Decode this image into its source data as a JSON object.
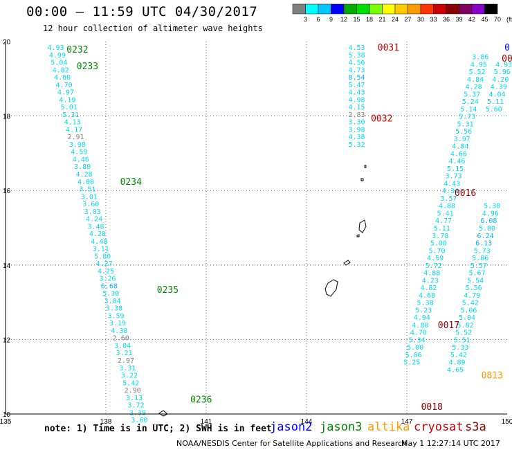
{
  "title": "00:00 – 11:59 UTC 04/30/2017",
  "subtitle": "12 hour collection of altimeter wave heights",
  "colorbar": {
    "ticks": [
      "3",
      "6",
      "9",
      "12",
      "15",
      "18",
      "21",
      "24",
      "27",
      "30",
      "33",
      "36",
      "39",
      "42",
      "45",
      "70",
      "(ft)"
    ],
    "colors": [
      "#7f7f7f",
      "#00ffff",
      "#00c8ff",
      "#0000ff",
      "#00aa00",
      "#00dd00",
      "#7cff00",
      "#ffff00",
      "#ffcc00",
      "#ff9900",
      "#ff3300",
      "#cc0000",
      "#8b0000",
      "#800060",
      "#8800cc",
      "#000000"
    ]
  },
  "note": "note: 1) Time is in UTC; 2) SWH is in feet",
  "missions": [
    {
      "name": "jason2",
      "color": "#0000ff"
    },
    {
      "name": "jason3",
      "color": "#008800"
    },
    {
      "name": "altika",
      "color": "#ff9900"
    },
    {
      "name": "cryosat",
      "color": "#cc0000"
    },
    {
      "name": "s3a",
      "color": "#8b0000"
    }
  ],
  "footer": "NOAA/NESDIS Center for Satellite Applications and Research",
  "footer_time": "May  1 12:27:14 UTC 2017",
  "chart_data": {
    "type": "scatter",
    "xlim": [
      135,
      150
    ],
    "ylim": [
      10,
      20
    ],
    "xticks": [
      "135",
      "138",
      "141",
      "144",
      "147",
      "150"
    ],
    "yticks": [
      "10",
      "12",
      "14",
      "16",
      "18",
      "20"
    ],
    "grid": true,
    "tracks": [
      {
        "mission": "jason3",
        "color": "#008800",
        "labels": [
          {
            "text": "0232",
            "lon": 137.15,
            "lat": 19.8
          },
          {
            "text": "0233",
            "lon": 137.45,
            "lat": 19.35
          },
          {
            "text": "0234",
            "lon": 138.75,
            "lat": 16.25
          },
          {
            "text": "0235",
            "lon": 139.85,
            "lat": 13.35
          },
          {
            "text": "0236",
            "lon": 140.85,
            "lat": 10.4
          }
        ]
      },
      {
        "mission": "cryosat",
        "color": "#cc0000",
        "labels": [
          {
            "text": "0031",
            "lon": 146.45,
            "lat": 19.85
          },
          {
            "text": "0032",
            "lon": 146.25,
            "lat": 17.95
          }
        ]
      },
      {
        "mission": "s3a",
        "color": "#8b0000",
        "labels": [
          {
            "text": "0016",
            "lon": 148.75,
            "lat": 15.95
          },
          {
            "text": "0017",
            "lon": 148.25,
            "lat": 12.4
          },
          {
            "text": "0018",
            "lon": 147.75,
            "lat": 10.2
          },
          {
            "text": "00",
            "lon": 150.0,
            "lat": 19.55
          }
        ]
      },
      {
        "mission": "altika",
        "color": "#ff9900",
        "labels": [
          {
            "text": "0813",
            "lon": 149.55,
            "lat": 11.05
          }
        ]
      },
      {
        "mission": "jason2",
        "color": "#0000ff",
        "labels": [
          {
            "text": "0",
            "lon": 150.0,
            "lat": 19.85
          }
        ]
      }
    ],
    "points": [
      {
        "lon": 136.5,
        "lat": 19.85,
        "swh": "4.93"
      },
      {
        "lon": 136.55,
        "lat": 19.65,
        "swh": "4.99"
      },
      {
        "lon": 136.6,
        "lat": 19.45,
        "swh": "5.04"
      },
      {
        "lon": 136.65,
        "lat": 19.25,
        "swh": "4.82"
      },
      {
        "lon": 136.7,
        "lat": 19.05,
        "swh": "4.68"
      },
      {
        "lon": 136.75,
        "lat": 18.85,
        "swh": "4.70"
      },
      {
        "lon": 136.8,
        "lat": 18.65,
        "swh": "4.97"
      },
      {
        "lon": 136.85,
        "lat": 18.45,
        "swh": "4.19"
      },
      {
        "lon": 136.9,
        "lat": 18.25,
        "swh": "5.01"
      },
      {
        "lon": 136.95,
        "lat": 18.05,
        "swh": "5.31"
      },
      {
        "lon": 137.0,
        "lat": 17.85,
        "swh": "4.13"
      },
      {
        "lon": 137.05,
        "lat": 17.65,
        "swh": "4.17"
      },
      {
        "lon": 137.1,
        "lat": 17.45,
        "swh": "2.91"
      },
      {
        "lon": 137.15,
        "lat": 17.25,
        "swh": "3.98"
      },
      {
        "lon": 137.2,
        "lat": 17.05,
        "swh": "4.59"
      },
      {
        "lon": 137.25,
        "lat": 16.85,
        "swh": "4.46"
      },
      {
        "lon": 137.3,
        "lat": 16.65,
        "swh": "3.80"
      },
      {
        "lon": 137.35,
        "lat": 16.45,
        "swh": "4.28"
      },
      {
        "lon": 137.4,
        "lat": 16.25,
        "swh": "4.00"
      },
      {
        "lon": 137.45,
        "lat": 16.05,
        "swh": "3.51"
      },
      {
        "lon": 137.5,
        "lat": 15.85,
        "swh": "3.01"
      },
      {
        "lon": 137.55,
        "lat": 15.65,
        "swh": "3.60"
      },
      {
        "lon": 137.6,
        "lat": 15.45,
        "swh": "3.03"
      },
      {
        "lon": 137.65,
        "lat": 15.25,
        "swh": "4.24"
      },
      {
        "lon": 137.7,
        "lat": 15.05,
        "swh": "3.48"
      },
      {
        "lon": 137.75,
        "lat": 14.85,
        "swh": "4.28"
      },
      {
        "lon": 137.8,
        "lat": 14.65,
        "swh": "4.48"
      },
      {
        "lon": 137.85,
        "lat": 14.45,
        "swh": "3.11"
      },
      {
        "lon": 137.9,
        "lat": 14.25,
        "swh": "5.80"
      },
      {
        "lon": 137.95,
        "lat": 14.05,
        "swh": "4.27"
      },
      {
        "lon": 138.0,
        "lat": 13.85,
        "swh": "4.25"
      },
      {
        "lon": 138.05,
        "lat": 13.65,
        "swh": "3.26"
      },
      {
        "lon": 138.1,
        "lat": 13.45,
        "swh": "6.68"
      },
      {
        "lon": 138.15,
        "lat": 13.25,
        "swh": "5.30"
      },
      {
        "lon": 138.2,
        "lat": 13.05,
        "swh": "3.04"
      },
      {
        "lon": 138.25,
        "lat": 12.85,
        "swh": "3.38"
      },
      {
        "lon": 138.3,
        "lat": 12.65,
        "swh": "3.59"
      },
      {
        "lon": 138.35,
        "lat": 12.45,
        "swh": "3.19"
      },
      {
        "lon": 138.4,
        "lat": 12.25,
        "swh": "4.38"
      },
      {
        "lon": 138.45,
        "lat": 12.05,
        "swh": "2.60"
      },
      {
        "lon": 138.5,
        "lat": 11.85,
        "swh": "3.04"
      },
      {
        "lon": 138.55,
        "lat": 11.65,
        "swh": "3.21"
      },
      {
        "lon": 138.6,
        "lat": 11.45,
        "swh": "2.97"
      },
      {
        "lon": 138.65,
        "lat": 11.25,
        "swh": "3.31"
      },
      {
        "lon": 138.7,
        "lat": 11.05,
        "swh": "3.22"
      },
      {
        "lon": 138.75,
        "lat": 10.85,
        "swh": "5.42"
      },
      {
        "lon": 138.8,
        "lat": 10.65,
        "swh": "2.90"
      },
      {
        "lon": 138.85,
        "lat": 10.45,
        "swh": "3.13"
      },
      {
        "lon": 138.9,
        "lat": 10.25,
        "swh": "3.72"
      },
      {
        "lon": 138.95,
        "lat": 10.05,
        "swh": "3.39"
      },
      {
        "lon": 139.0,
        "lat": 9.85,
        "swh": "3.60"
      },
      {
        "lon": 145.5,
        "lat": 19.85,
        "swh": "4.53"
      },
      {
        "lon": 145.5,
        "lat": 19.65,
        "swh": "5.38"
      },
      {
        "lon": 145.5,
        "lat": 19.45,
        "swh": "4.56"
      },
      {
        "lon": 145.5,
        "lat": 19.25,
        "swh": "4.73"
      },
      {
        "lon": 145.5,
        "lat": 19.05,
        "swh": "8.54"
      },
      {
        "lon": 145.5,
        "lat": 18.85,
        "swh": "5.47"
      },
      {
        "lon": 145.5,
        "lat": 18.65,
        "swh": "4.43"
      },
      {
        "lon": 145.5,
        "lat": 18.45,
        "swh": "4.98"
      },
      {
        "lon": 145.5,
        "lat": 18.25,
        "swh": "4.15"
      },
      {
        "lon": 145.5,
        "lat": 18.05,
        "swh": "2.83"
      },
      {
        "lon": 145.5,
        "lat": 17.85,
        "swh": "3.30"
      },
      {
        "lon": 145.5,
        "lat": 17.65,
        "swh": "3.98"
      },
      {
        "lon": 145.5,
        "lat": 17.45,
        "swh": "4.38"
      },
      {
        "lon": 145.5,
        "lat": 17.25,
        "swh": "5.32"
      },
      {
        "lon": 149.2,
        "lat": 19.6,
        "swh": "3.86"
      },
      {
        "lon": 149.15,
        "lat": 19.4,
        "swh": "4.95"
      },
      {
        "lon": 149.1,
        "lat": 19.2,
        "swh": "5.52"
      },
      {
        "lon": 149.05,
        "lat": 19.0,
        "swh": "4.84"
      },
      {
        "lon": 149.0,
        "lat": 18.8,
        "swh": "4.28"
      },
      {
        "lon": 148.95,
        "lat": 18.6,
        "swh": "5.37"
      },
      {
        "lon": 148.9,
        "lat": 18.4,
        "swh": "5.24"
      },
      {
        "lon": 148.85,
        "lat": 18.2,
        "swh": "5.14"
      },
      {
        "lon": 148.8,
        "lat": 18.0,
        "swh": "5.73"
      },
      {
        "lon": 148.75,
        "lat": 17.8,
        "swh": "5.31"
      },
      {
        "lon": 148.7,
        "lat": 17.6,
        "swh": "5.56"
      },
      {
        "lon": 148.65,
        "lat": 17.4,
        "swh": "3.97"
      },
      {
        "lon": 148.6,
        "lat": 17.2,
        "swh": "4.84"
      },
      {
        "lon": 148.55,
        "lat": 17.0,
        "swh": "4.66"
      },
      {
        "lon": 148.5,
        "lat": 16.8,
        "swh": "4.46"
      },
      {
        "lon": 148.45,
        "lat": 16.6,
        "swh": "5.15"
      },
      {
        "lon": 148.4,
        "lat": 16.4,
        "swh": "3.73"
      },
      {
        "lon": 148.35,
        "lat": 16.2,
        "swh": "4.43"
      },
      {
        "lon": 148.3,
        "lat": 16.0,
        "swh": "4.34"
      },
      {
        "lon": 148.25,
        "lat": 15.8,
        "swh": "3.57"
      },
      {
        "lon": 148.2,
        "lat": 15.6,
        "swh": "4.88"
      },
      {
        "lon": 148.15,
        "lat": 15.4,
        "swh": "5.41"
      },
      {
        "lon": 148.1,
        "lat": 15.2,
        "swh": "4.77"
      },
      {
        "lon": 148.05,
        "lat": 15.0,
        "swh": "5.11"
      },
      {
        "lon": 148.0,
        "lat": 14.8,
        "swh": "3.78"
      },
      {
        "lon": 147.95,
        "lat": 14.6,
        "swh": "5.00"
      },
      {
        "lon": 147.9,
        "lat": 14.4,
        "swh": "5.70"
      },
      {
        "lon": 147.85,
        "lat": 14.2,
        "swh": "4.59"
      },
      {
        "lon": 147.8,
        "lat": 14.0,
        "swh": "5.72"
      },
      {
        "lon": 147.75,
        "lat": 13.8,
        "swh": "4.88"
      },
      {
        "lon": 147.7,
        "lat": 13.6,
        "swh": "4.23"
      },
      {
        "lon": 147.65,
        "lat": 13.4,
        "swh": "4.82"
      },
      {
        "lon": 147.6,
        "lat": 13.2,
        "swh": "4.68"
      },
      {
        "lon": 147.55,
        "lat": 13.0,
        "swh": "5.38"
      },
      {
        "lon": 147.5,
        "lat": 12.8,
        "swh": "5.23"
      },
      {
        "lon": 147.45,
        "lat": 12.6,
        "swh": "4.94"
      },
      {
        "lon": 147.4,
        "lat": 12.4,
        "swh": "4.80"
      },
      {
        "lon": 147.35,
        "lat": 12.2,
        "swh": "4.70"
      },
      {
        "lon": 147.3,
        "lat": 12.0,
        "swh": "5.34"
      },
      {
        "lon": 147.25,
        "lat": 11.8,
        "swh": "5.00"
      },
      {
        "lon": 147.2,
        "lat": 11.6,
        "swh": "5.06"
      },
      {
        "lon": 147.15,
        "lat": 11.4,
        "swh": "5.25"
      },
      {
        "lon": 149.9,
        "lat": 19.4,
        "swh": "4.93"
      },
      {
        "lon": 149.85,
        "lat": 19.2,
        "swh": "5.96"
      },
      {
        "lon": 149.8,
        "lat": 19.0,
        "swh": "4.20"
      },
      {
        "lon": 149.75,
        "lat": 18.8,
        "swh": "4.39"
      },
      {
        "lon": 149.7,
        "lat": 18.6,
        "swh": "4.04"
      },
      {
        "lon": 149.65,
        "lat": 18.4,
        "swh": "5.11"
      },
      {
        "lon": 149.6,
        "lat": 18.2,
        "swh": "5.60"
      },
      {
        "lon": 149.55,
        "lat": 15.6,
        "swh": "5.30"
      },
      {
        "lon": 149.5,
        "lat": 15.4,
        "swh": "4.96"
      },
      {
        "lon": 149.45,
        "lat": 15.2,
        "swh": "6.08"
      },
      {
        "lon": 149.4,
        "lat": 15.0,
        "swh": "5.80"
      },
      {
        "lon": 149.35,
        "lat": 14.8,
        "swh": "6.24"
      },
      {
        "lon": 149.3,
        "lat": 14.6,
        "swh": "6.13"
      },
      {
        "lon": 149.25,
        "lat": 14.4,
        "swh": "5.73"
      },
      {
        "lon": 149.2,
        "lat": 14.2,
        "swh": "5.86"
      },
      {
        "lon": 149.15,
        "lat": 14.0,
        "swh": "5.57"
      },
      {
        "lon": 149.1,
        "lat": 13.8,
        "swh": "5.67"
      },
      {
        "lon": 149.05,
        "lat": 13.6,
        "swh": "5.54"
      },
      {
        "lon": 149.0,
        "lat": 13.4,
        "swh": "5.56"
      },
      {
        "lon": 148.95,
        "lat": 13.2,
        "swh": "4.79"
      },
      {
        "lon": 148.9,
        "lat": 13.0,
        "swh": "5.42"
      },
      {
        "lon": 148.85,
        "lat": 12.8,
        "swh": "5.06"
      },
      {
        "lon": 148.8,
        "lat": 12.6,
        "swh": "5.04"
      },
      {
        "lon": 148.75,
        "lat": 12.4,
        "swh": "5.82"
      },
      {
        "lon": 148.7,
        "lat": 12.2,
        "swh": "5.52"
      },
      {
        "lon": 148.65,
        "lat": 12.0,
        "swh": "5.51"
      },
      {
        "lon": 148.6,
        "lat": 11.8,
        "swh": "5.33"
      },
      {
        "lon": 148.55,
        "lat": 11.6,
        "swh": "5.42"
      },
      {
        "lon": 148.5,
        "lat": 11.4,
        "swh": "4.89"
      },
      {
        "lon": 148.45,
        "lat": 11.2,
        "swh": "4.65"
      }
    ]
  }
}
